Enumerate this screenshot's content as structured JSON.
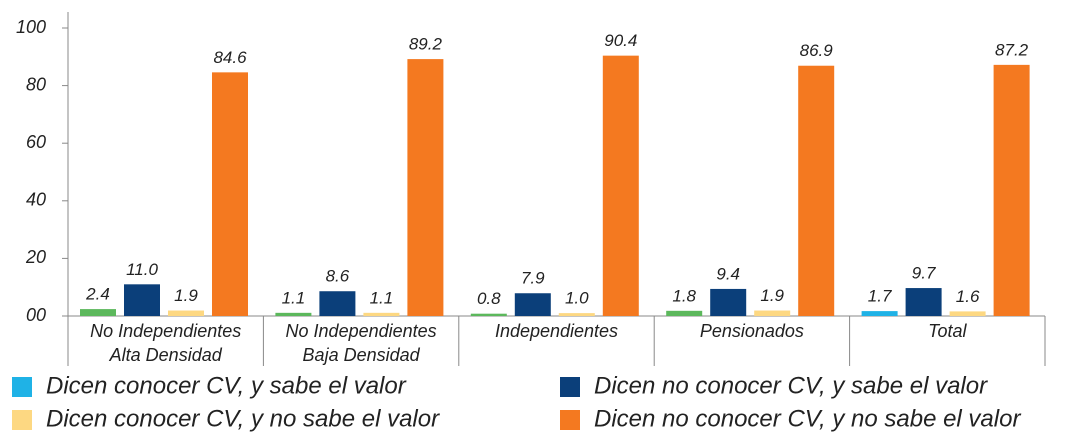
{
  "chart_data": {
    "type": "bar",
    "categories": [
      "No Independientes\nAlta Densidad",
      "No Independientes\nBaja Densidad",
      "Independientes",
      "Pensionados",
      "Total"
    ],
    "series": [
      {
        "name": "Dicen conocer CV, y sabe el valor",
        "color": "#1fb2e6",
        "point_colors": [
          "#5cb85c",
          "#5cb85c",
          "#5cb85c",
          "#5cb85c",
          "#1fb2e6"
        ],
        "values": [
          2.4,
          1.1,
          0.8,
          1.8,
          1.7
        ],
        "value_labels": [
          "2.4",
          "1.1",
          "0.8",
          "1.8",
          "1.7"
        ]
      },
      {
        "name": "Dicen no conocer CV, y sabe el valor",
        "color": "#0b3f7a",
        "values": [
          11.0,
          8.6,
          7.9,
          9.4,
          9.7
        ],
        "value_labels": [
          "11.0",
          "8.6",
          "7.9",
          "9.4",
          "9.7"
        ]
      },
      {
        "name": "Dicen conocer CV, y no sabe el valor",
        "color": "#fdd882",
        "values": [
          1.9,
          1.1,
          1.0,
          1.9,
          1.6
        ],
        "value_labels": [
          "1.9",
          "1.1",
          "1.0",
          "1.9",
          "1.6"
        ]
      },
      {
        "name": "Dicen no conocer CV, y no sabe el valor",
        "color": "#f47920",
        "values": [
          84.6,
          89.2,
          90.4,
          86.9,
          87.2
        ],
        "value_labels": [
          "84.6",
          "89.2",
          "90.4",
          "86.9",
          "87.2"
        ]
      }
    ],
    "ylim": [
      0,
      100
    ],
    "yticks": [
      {
        "value": 0,
        "label": "00"
      },
      20,
      40,
      60,
      80,
      100
    ],
    "grid": false
  }
}
